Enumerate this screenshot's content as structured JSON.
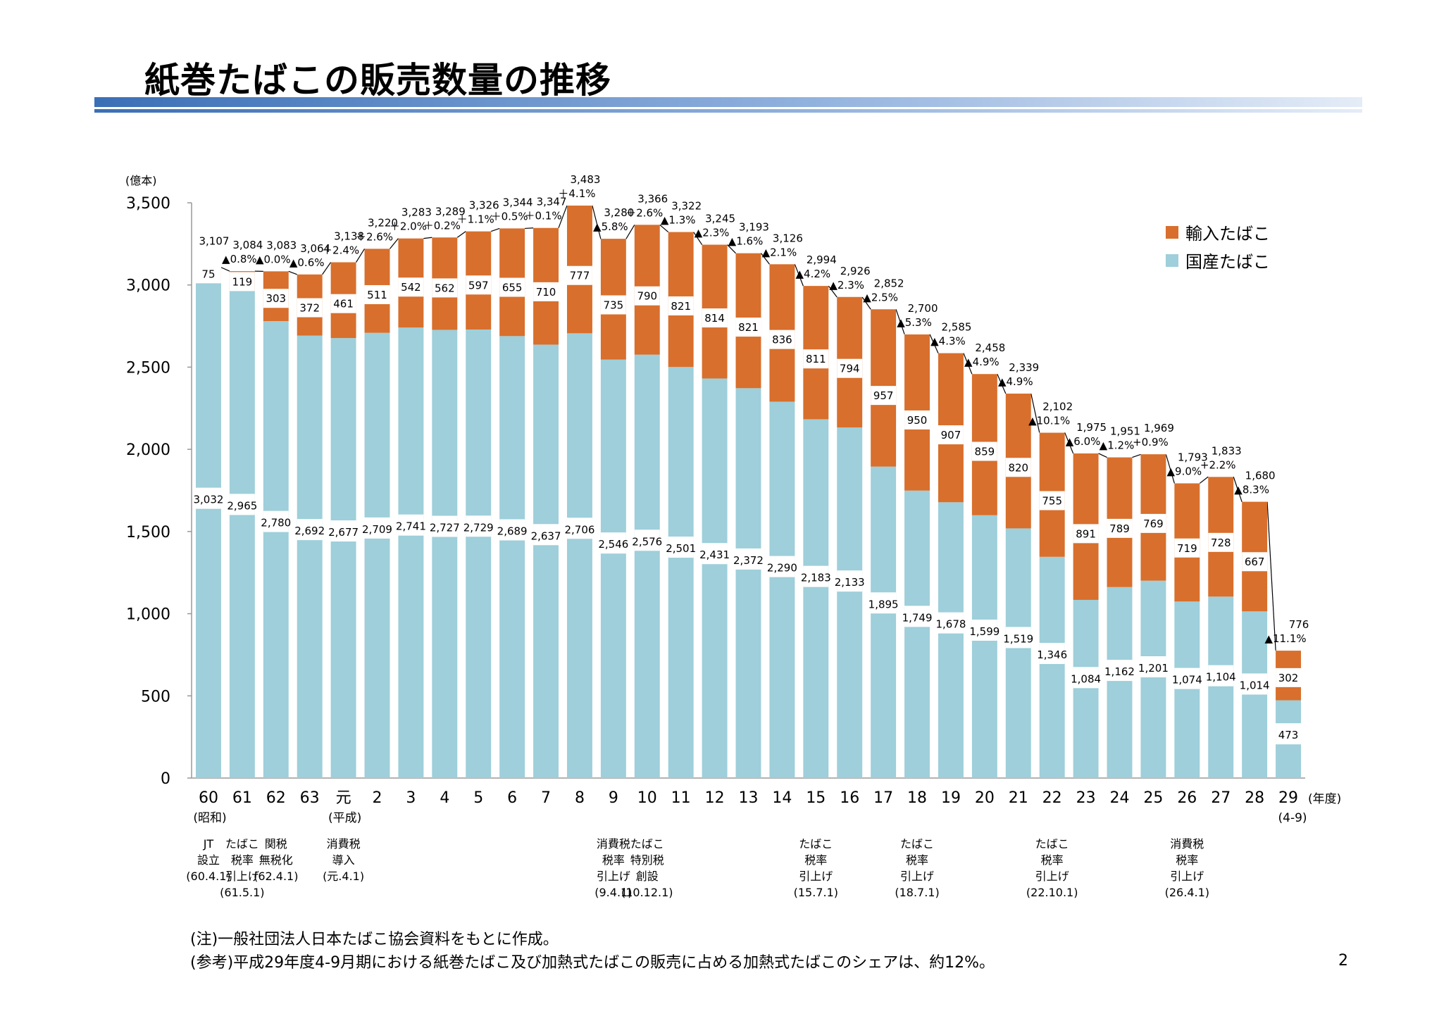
{
  "page": {
    "title": "紙巻たばこの販売数量の推移",
    "page_number": "2",
    "notes": [
      "(注)一般社団法人日本たばこ協会資料をもとに作成。",
      "(参考)平成29年度4-9月期における紙巻たばこ及び加熱式たばこの販売に占める加熱式たばこのシェアは、約12%。"
    ]
  },
  "colors": {
    "domestic": "#9ecfda",
    "imported": "#d86f2c",
    "title_rule_dark": "#3b6fb6",
    "title_rule_light": "#dfe9f5"
  },
  "chart_data": {
    "type": "bar",
    "stacked": true,
    "y_unit_label": "(億本)",
    "x_unit_label": "(年度)",
    "ylim": [
      0,
      3500
    ],
    "y_ticks": [
      "0",
      "500",
      "1,000",
      "1,500",
      "2,000",
      "2,500",
      "3,000",
      "3,500"
    ],
    "categories": [
      "60",
      "61",
      "62",
      "63",
      "元",
      "2",
      "3",
      "4",
      "5",
      "6",
      "7",
      "8",
      "9",
      "10",
      "11",
      "12",
      "13",
      "14",
      "15",
      "16",
      "17",
      "18",
      "19",
      "20",
      "21",
      "22",
      "23",
      "24",
      "25",
      "26",
      "27",
      "28",
      "29"
    ],
    "era_labels": [
      {
        "index": 0,
        "text": "(昭和)"
      },
      {
        "index": 4,
        "text": "(平成)"
      },
      {
        "index": 32,
        "text": "(4-9)"
      }
    ],
    "legend": [
      "輸入たばこ",
      "国産たばこ"
    ],
    "series": [
      {
        "name": "国産たばこ",
        "values": [
          3032,
          2965,
          2780,
          2692,
          2677,
          2709,
          2741,
          2727,
          2729,
          2689,
          2637,
          2706,
          2546,
          2576,
          2501,
          2431,
          2372,
          2290,
          2183,
          2133,
          1895,
          1749,
          1678,
          1599,
          1519,
          1346,
          1084,
          1162,
          1201,
          1074,
          1104,
          1014,
          473
        ],
        "labels": [
          "3,032",
          "2,965",
          "2,780",
          "2,692",
          "2,677",
          "2,709",
          "2,741",
          "2,727",
          "2,729",
          "2,689",
          "2,637",
          "2,706",
          "2,546",
          "2,576",
          "2,501",
          "2,431",
          "2,372",
          "2,290",
          "2,183",
          "2,133",
          "1,895",
          "1,749",
          "1,678",
          "1,599",
          "1,519",
          "1,346",
          "1,084",
          "1,162",
          "1,201",
          "1,074",
          "1,104",
          "1,014",
          "473"
        ]
      },
      {
        "name": "輸入たばこ",
        "values": [
          75,
          119,
          303,
          372,
          461,
          511,
          542,
          562,
          597,
          655,
          710,
          777,
          735,
          790,
          821,
          814,
          821,
          836,
          811,
          794,
          957,
          950,
          907,
          859,
          820,
          755,
          891,
          789,
          769,
          719,
          728,
          667,
          302
        ],
        "labels": [
          "75",
          "119",
          "303",
          "372",
          "461",
          "511",
          "542",
          "562",
          "597",
          "655",
          "710",
          "777",
          "735",
          "790",
          "821",
          "814",
          "821",
          "836",
          "811",
          "794",
          "957",
          "950",
          "907",
          "859",
          "820",
          "755",
          "891",
          "789",
          "769",
          "719",
          "728",
          "667",
          "302"
        ]
      }
    ],
    "totals": [
      3107,
      3084,
      3083,
      3064,
      3138,
      3220,
      3283,
      3289,
      3326,
      3344,
      3347,
      3483,
      3280,
      3366,
      3322,
      3245,
      3193,
      3126,
      2994,
      2926,
      2852,
      2700,
      2585,
      2458,
      2339,
      2102,
      1975,
      1951,
      1969,
      1793,
      1833,
      1680,
      776
    ],
    "total_labels": [
      "3,107",
      "3,084",
      "3,083",
      "3,064",
      "3,138",
      "3,220",
      "3,283",
      "3,289",
      "3,326",
      "3,344",
      "3,347",
      "3,483",
      "3,280",
      "3,366",
      "3,322",
      "3,245",
      "3,193",
      "3,126",
      "2,994",
      "2,926",
      "2,852",
      "2,700",
      "2,585",
      "2,458",
      "2,339",
      "2,102",
      "1,975",
      "1,951",
      "1,969",
      "1,793",
      "1,833",
      "1,680",
      "776"
    ],
    "change_labels": [
      "",
      "▲0.8%",
      "▲0.0%",
      "▲0.6%",
      "＋2.4%",
      "＋2.6%",
      "＋2.0%",
      "＋0.2%",
      "＋1.1%",
      "＋0.5%",
      "＋0.1%",
      "＋4.1%",
      "▲5.8%",
      "＋2.6%",
      "▲1.3%",
      "▲2.3%",
      "▲1.6%",
      "▲2.1%",
      "▲4.2%",
      "▲2.3%",
      "▲2.5%",
      "▲5.3%",
      "▲4.3%",
      "▲4.9%",
      "▲4.9%",
      "▲10.1%",
      "▲6.0%",
      "▲1.2%",
      "+0.9%",
      "▲9.0%",
      "+2.2%",
      "▲8.3%",
      "▲11.1%"
    ]
  },
  "events": [
    {
      "index": 0,
      "lines": [
        "JT",
        "設立",
        "(60.4.1)"
      ]
    },
    {
      "index": 1,
      "lines": [
        "たばこ",
        "税率",
        "引上げ",
        "(61.5.1)"
      ]
    },
    {
      "index": 2,
      "lines": [
        "関税",
        "無税化",
        "(62.4.1)"
      ]
    },
    {
      "index": 4,
      "lines": [
        "消費税",
        "導入",
        "(元.4.1)"
      ]
    },
    {
      "index": 12,
      "lines": [
        "消費税",
        "税率",
        "引上げ",
        "(9.4.1)"
      ]
    },
    {
      "index": 13,
      "lines": [
        "たばこ",
        "特別税",
        "創設",
        "(10.12.1)"
      ]
    },
    {
      "index": 18,
      "lines": [
        "たばこ",
        "税率",
        "引上げ",
        "(15.7.1)"
      ]
    },
    {
      "index": 21,
      "lines": [
        "たばこ",
        "税率",
        "引上げ",
        "(18.7.1)"
      ]
    },
    {
      "index": 25,
      "lines": [
        "たばこ",
        "税率",
        "引上げ",
        "(22.10.1)"
      ]
    },
    {
      "index": 29,
      "lines": [
        "消費税",
        "税率",
        "引上げ",
        "(26.4.1)"
      ]
    }
  ]
}
